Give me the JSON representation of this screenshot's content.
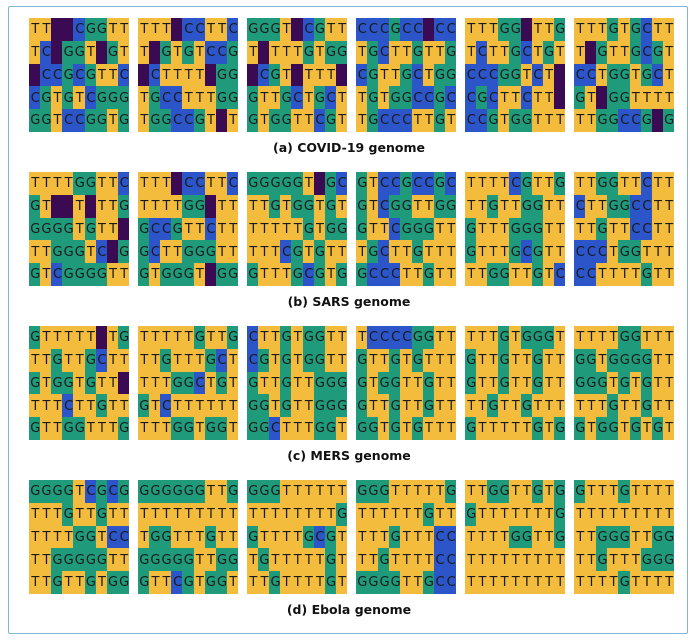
{
  "colors": {
    "A": "#3a0b52",
    "C": "#2b55c8",
    "G": "#1f9a7a",
    "T": "#f4bc3c",
    "frame": "#7fb6d6"
  },
  "panels": [
    {
      "caption": "(a) COVID-19 genome",
      "tiles": [
        [
          "TTAACGGTT",
          "TCAGGTAGT",
          "ACCGCGTTC",
          "CGTGTCGGG",
          "GGTCCGGTG"
        ],
        [
          "TTTACCTTC",
          "TAGTGTCCG",
          "ACTTTTAGG",
          "TGCCTTTGG",
          "TGGCCGTAT"
        ],
        [
          "GGGTACGTT",
          "TATTTGTGG",
          "ACGTATTTA",
          "GTTGCTGCT",
          "GTGGTTCGT"
        ],
        [
          "CCCGCCACC",
          "TGCTTGTTG",
          "CGTTGCTGG",
          "TGTGGCCGC",
          "TGCCCTTGT"
        ],
        [
          "TTTGGATTG",
          "TCTTGCTGT",
          "CCCGGTCTA",
          "CGCTTCTTA",
          "CCGTGGTTT"
        ],
        [
          "TTTGTGCTT",
          "TAGTTGCGT",
          "CCTGGTGCT",
          "GTAGGTTTT",
          "TTGGCCGAG"
        ]
      ]
    },
    {
      "caption": "(b) SARS genome",
      "tiles": [
        [
          "TTTTGGTTC",
          "GTAATATTG",
          "GGGGTGTTA",
          "TTGGGTCAG",
          "GTCGGGGTT"
        ],
        [
          "TTTACCTTC",
          "TTTTGGATT",
          "GCCGTTCTT",
          "GCTTGGGTT",
          "GTGGGTAGG"
        ],
        [
          "GGGGGTAGC",
          "TTGTGGTGT",
          "TTTTTGTGG",
          "TTTCGTGTT",
          "GTTTGCGTG"
        ],
        [
          "GTCCGCCGC",
          "GTCGGTTGG",
          "GTTCGGGTT",
          "TGCTTGTTT",
          "GCCCTTGTT"
        ],
        [
          "TTTTCGTTG",
          "TTGTTGGTT",
          "GTTTGGGTT",
          "GTTTGCGTT",
          "TTGGTTGTC"
        ],
        [
          "TTGGTTCTT",
          "CTTGGCCTT",
          "TTGTTCCTT",
          "CCCTGGTTT",
          "CCTTTTGTT"
        ]
      ]
    },
    {
      "caption": "(c) MERS genome",
      "tiles": [
        [
          "GTTTTTATG",
          "TTGTTGCTT",
          "GTGGTGTTA",
          "TTTCTTGTT",
          "GTTGGTTTG"
        ],
        [
          "TTTTTGTTG",
          "TTGTTTGCT",
          "TTTGGCTGT",
          "GTCTTTTTT",
          "TTTGGTGGT"
        ],
        [
          "CTTGTGGTT",
          "CGTGTGGTT",
          "GTTGTTGGG",
          "GGTGTTGGG",
          "GGCTTTGGT"
        ],
        [
          "TCCCCGGTT",
          "GTTGTGTTT",
          "GTGGTTGTT",
          "GTTGTTGTT",
          "GGTGTGTTT"
        ],
        [
          "TTTGTGGGT",
          "GTTGTTGTT",
          "GTTGTTGTT",
          "TTGTTGTTT",
          "GTTTTTGTG"
        ],
        [
          "TTTTGGTTT",
          "GGTGGGGTT",
          "GGGTGTGTT",
          "TTTGTTGTT",
          "GTGGTGTGT"
        ]
      ]
    },
    {
      "caption": "(d) Ebola genome",
      "tiles": [
        [
          "GGGGTCGCG",
          "TTTGTTGTT",
          "TTTTGGTCC",
          "TTGGGGGTT",
          "TTGTTGTGG"
        ],
        [
          "GGGGGGTTG",
          "TTTTTTTTT",
          "TGGTTTGTT",
          "GGGGGTTGG",
          "GTTCGTGGT"
        ],
        [
          "GGGTTTTTT",
          "TTTTTTTTG",
          "GTTTTGCGT",
          "TGTTTTTGT",
          "TTGTTTTGT"
        ],
        [
          "GGGTTTTTG",
          "TTTTTTGTT",
          "TTTGTTTCC",
          "TTGTTTTCC",
          "GGGGTTGCC"
        ],
        [
          "TTGGTTGTG",
          "GTTTTTTTG",
          "TTTTGGTTG",
          "TTTTTTTTT",
          "TTTTTTTTT"
        ],
        [
          "GTTTGTTTT",
          "TTTTTTTTT",
          "TTGGGTTGG",
          "TTGTTTGGG",
          "TTTTGTTTT"
        ]
      ]
    }
  ]
}
